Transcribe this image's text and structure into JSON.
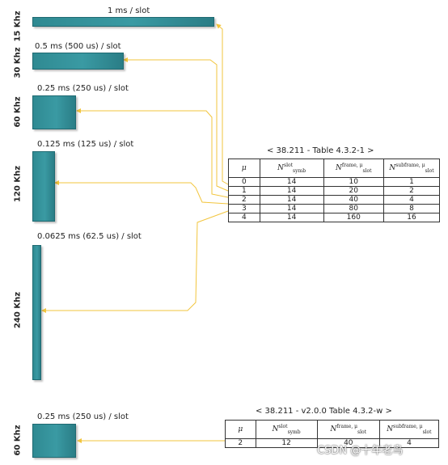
{
  "numerologies": [
    {
      "scs": "15 Khz",
      "slot": "1 ms / slot"
    },
    {
      "scs": "30 Khz",
      "slot": "0.5 ms (500 us) / slot"
    },
    {
      "scs": "60 Khz",
      "slot": "0.25 ms (250 us) / slot"
    },
    {
      "scs": "120 Khz",
      "slot": "0.125 ms (125 us) / slot"
    },
    {
      "scs": "240 Khz",
      "slot": "0.0625 ms (62.5 us) / slot"
    },
    {
      "scs": "60 Khz",
      "slot": "0.25 ms (250 us) / slot"
    }
  ],
  "table1": {
    "title": "< 38.211 - Table 4.3.2-1 >",
    "headers": {
      "mu": "μ",
      "symb": {
        "base": "N",
        "sup": "slot",
        "sub": "symb"
      },
      "frame": {
        "base": "N",
        "sup": "frame, μ",
        "sub": "slot"
      },
      "subframe": {
        "base": "N",
        "sup": "subframe, μ",
        "sub": "slot"
      }
    },
    "rows": [
      [
        "0",
        "14",
        "10",
        "1"
      ],
      [
        "1",
        "14",
        "20",
        "2"
      ],
      [
        "2",
        "14",
        "40",
        "4"
      ],
      [
        "3",
        "14",
        "80",
        "8"
      ],
      [
        "4",
        "14",
        "160",
        "16"
      ]
    ]
  },
  "table2": {
    "title": "< 38.211 - v2.0.0 Table 4.3.2-w >",
    "headers": {
      "mu": "μ",
      "symb": {
        "base": "N",
        "sup": "slot",
        "sub": "symb"
      },
      "frame": {
        "base": "N",
        "sup": "frame, μ",
        "sub": "slot"
      },
      "subframe": {
        "base": "N",
        "sup": "subframe, μ",
        "sub": "slot"
      }
    },
    "rows": [
      [
        "2",
        "12",
        "40",
        "4"
      ]
    ]
  },
  "watermark": "CSDN @十年老鸟",
  "colors": {
    "bar": "#2f8a92",
    "arrow": "#f2c53d"
  }
}
